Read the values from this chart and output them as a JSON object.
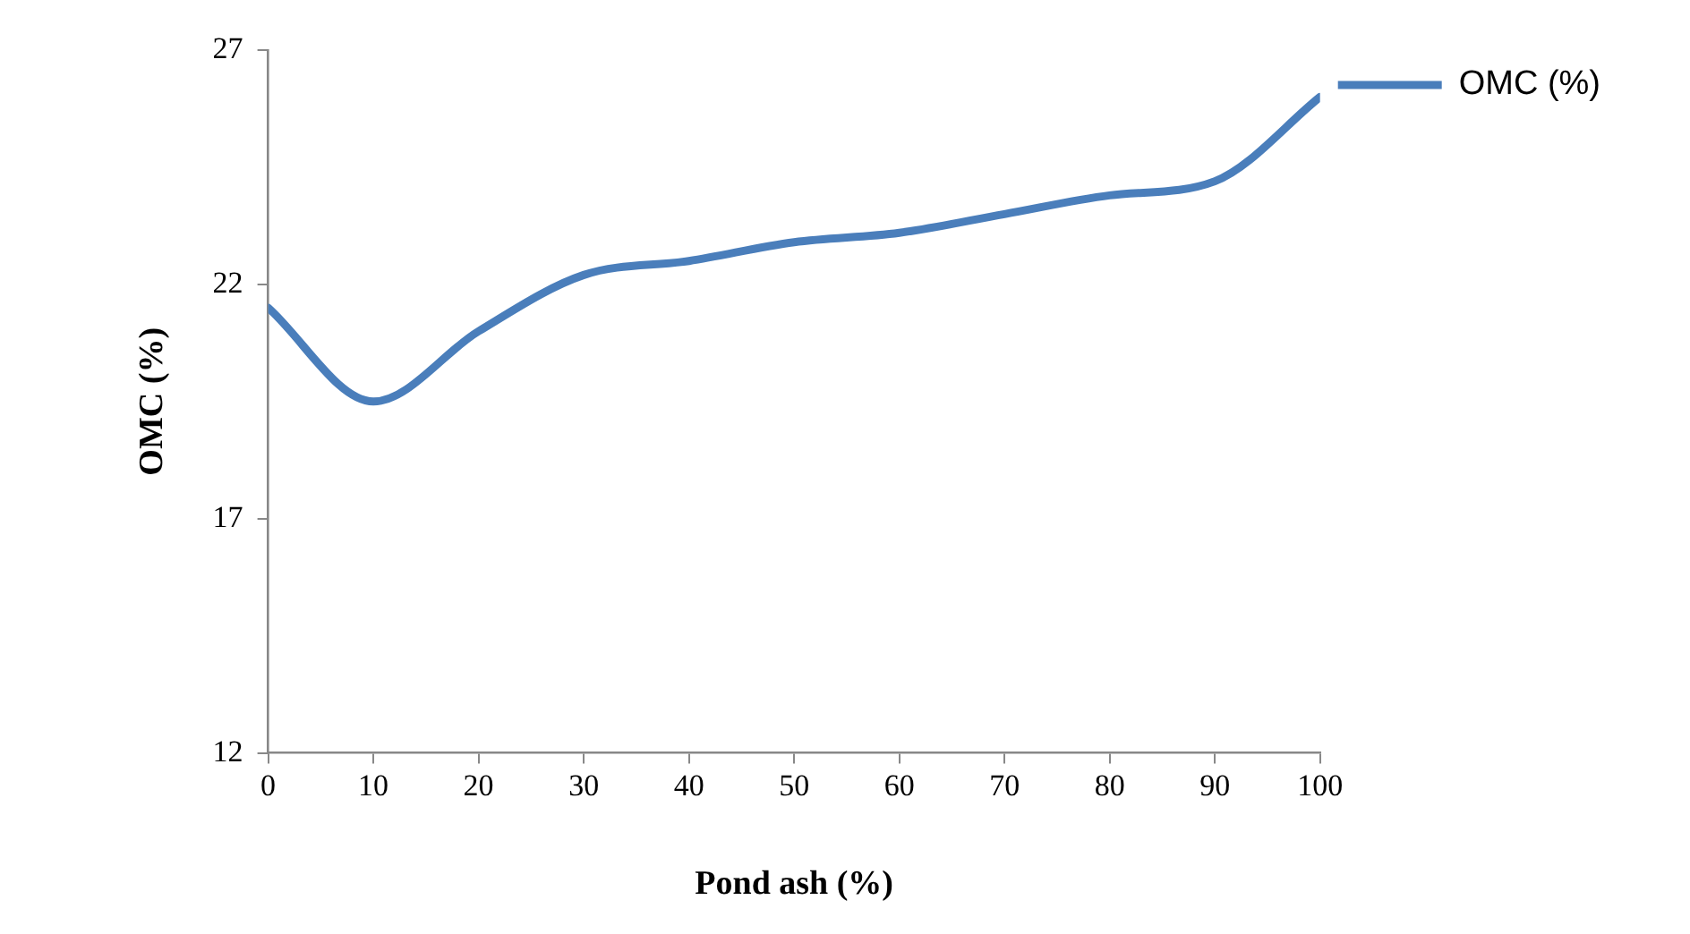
{
  "chart_data": {
    "type": "line",
    "xlabel": "Pond ash (%)",
    "ylabel": "OMC (%)",
    "x": [
      0,
      10,
      20,
      30,
      40,
      50,
      60,
      70,
      80,
      90,
      100
    ],
    "series": [
      {
        "name": "OMC (%)",
        "color": "#4a7ebb",
        "values": [
          21.5,
          19.5,
          21.0,
          22.2,
          22.5,
          22.9,
          23.1,
          23.5,
          23.9,
          24.2,
          26.0
        ]
      }
    ],
    "xlim": [
      0,
      100
    ],
    "xticks": [
      0,
      10,
      20,
      30,
      40,
      50,
      60,
      70,
      80,
      90,
      100
    ],
    "ylim": [
      12,
      27
    ],
    "yticks": [
      12,
      17,
      22,
      27
    ],
    "grid": false,
    "legend": "right",
    "marker": "none",
    "line_style": "solid"
  }
}
